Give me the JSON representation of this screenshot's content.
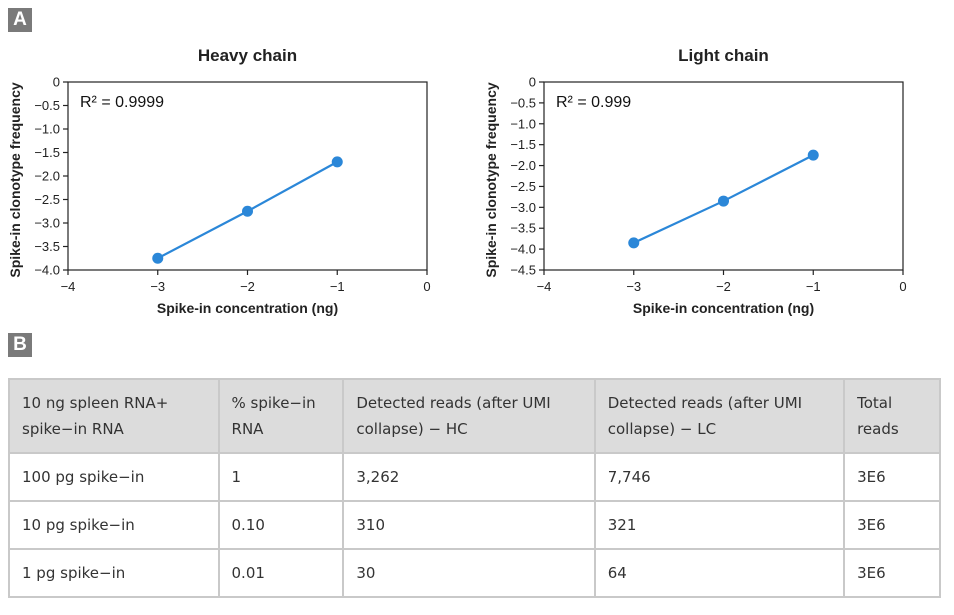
{
  "panel_a_label": "A",
  "panel_b_label": "B",
  "chart_data": [
    {
      "type": "line",
      "title": "Heavy chain",
      "xlabel": "Spike-in concentration (ng)",
      "ylabel": "Spike-in clonotype frequency",
      "annotation": "R² = 0.9999",
      "x": [
        -3,
        -2,
        -1
      ],
      "y": [
        -3.75,
        -2.75,
        -1.7
      ],
      "xlim": [
        -4,
        0
      ],
      "ylim": [
        -4.0,
        0
      ],
      "xticks": [
        -4,
        -3,
        -2,
        -1,
        0
      ],
      "xtick_labels": [
        "−4",
        "−3",
        "−2",
        "−1",
        "0"
      ],
      "yticks": [
        0,
        -0.5,
        -1.0,
        -1.5,
        -2.0,
        -2.5,
        -3.0,
        -3.5,
        -4.0
      ],
      "ytick_labels": [
        "0",
        "−0.5",
        "−1.0",
        "−1.5",
        "−2.0",
        "−2.5",
        "−3.0",
        "−3.5",
        "−4.0"
      ],
      "color": "#2b87d8",
      "grid": false
    },
    {
      "type": "line",
      "title": "Light chain",
      "xlabel": "Spike-in concentration (ng)",
      "ylabel": "Spike-in clonotype frequency",
      "annotation": "R² = 0.999",
      "x": [
        -3,
        -2,
        -1
      ],
      "y": [
        -3.85,
        -2.85,
        -1.75
      ],
      "xlim": [
        -4,
        0
      ],
      "ylim": [
        -4.5,
        0
      ],
      "xticks": [
        -4,
        -3,
        -2,
        -1,
        0
      ],
      "xtick_labels": [
        "−4",
        "−3",
        "−2",
        "−1",
        "0"
      ],
      "yticks": [
        0,
        -0.5,
        -1.0,
        -1.5,
        -2.0,
        -2.5,
        -3.0,
        -3.5,
        -4.0,
        -4.5
      ],
      "ytick_labels": [
        "0",
        "−0.5",
        "−1.0",
        "−1.5",
        "−2.0",
        "−2.5",
        "−3.0",
        "−3.5",
        "−4.0",
        "−4.5"
      ],
      "color": "#2b87d8",
      "grid": false
    }
  ],
  "table": {
    "headers": [
      "10 ng spleen RNA+ spike−in RNA",
      "% spike−in RNA",
      "Detected reads (after UMI collapse) − HC",
      "Detected reads (after UMI collapse) − LC",
      "Total reads"
    ],
    "rows": [
      [
        "100 pg spike−in",
        "1",
        "3,262",
        "7,746",
        "3E6"
      ],
      [
        "10 pg spike−in",
        "0.10",
        "310",
        "321",
        "3E6"
      ],
      [
        "1 pg spike−in",
        "0.01",
        "30",
        "64",
        "3E6"
      ]
    ]
  }
}
